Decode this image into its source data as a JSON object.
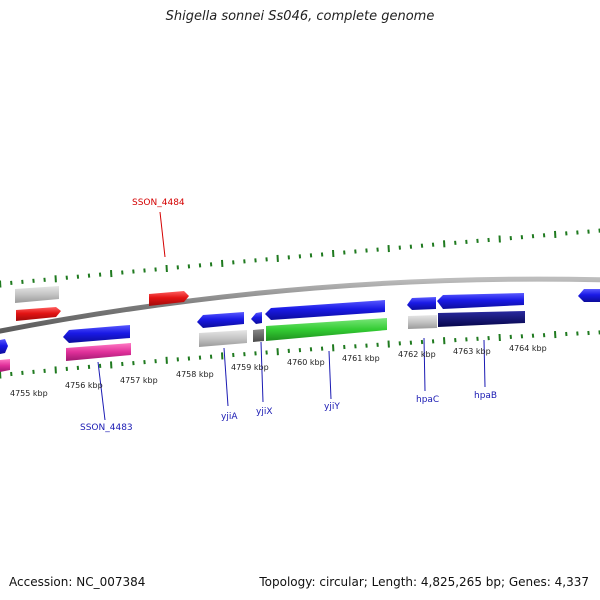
{
  "title": "Shigella sonnei Ss046, complete genome",
  "footer": {
    "accession": "Accession: NC_007384",
    "summary": "Topology: circular; Length: 4,825,265 bp; Genes: 4,337"
  },
  "colors": {
    "backbone": "#8a8a8a",
    "tick": "#1f7a1f",
    "forward_gene": "#1a1ae6",
    "reverse_gene": "#e31414",
    "pseudo": "#c8c8c8",
    "dark_gray": "#666666",
    "green_gene": "#33cc33",
    "pink_gene": "#e0309a",
    "navy_gene": "#0a0a6e",
    "label_red": "#d40000",
    "label_blue": "#1a1ab3"
  },
  "axis": {
    "tick_labels": [
      "4755 kbp",
      "4756 kbp",
      "4757 kbp",
      "4758 kbp",
      "4759 kbp",
      "4760 kbp",
      "4761 kbp",
      "4762 kbp",
      "4763 kbp",
      "4764 kbp"
    ]
  },
  "gene_labels": [
    {
      "text": "SSON_4484",
      "color": "label_red"
    },
    {
      "text": "SSON_4483",
      "color": "label_blue"
    },
    {
      "text": "yjiA",
      "color": "label_blue"
    },
    {
      "text": "yjiX",
      "color": "label_blue"
    },
    {
      "text": "yjiY",
      "color": "label_blue"
    },
    {
      "text": "hpaC",
      "color": "label_blue"
    },
    {
      "text": "hpaB",
      "color": "label_blue"
    }
  ]
}
